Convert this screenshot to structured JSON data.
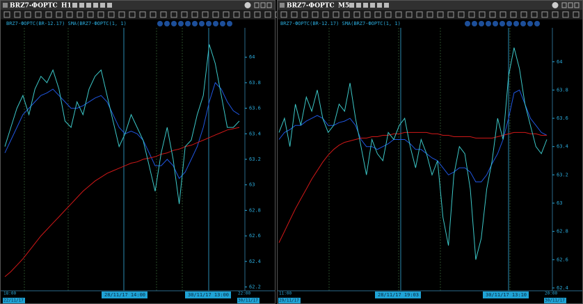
{
  "windows": [
    {
      "symbol": "BRZ7-ФОРТС",
      "timeframe": "H1",
      "chart_data": {
        "type": "line",
        "legend": "BRZ7-ФОРТС(BR-12.17) SMA(BRZ7-ФОРТС(1, 1)",
        "ylim": [
          62.17,
          64.23
        ],
        "yticks": [
          62.2,
          62.4,
          62.6,
          62.8,
          63,
          63.2,
          63.4,
          63.6,
          63.8,
          64
        ],
        "time_labels": [
          "18:00",
          "22/11/17",
          "28/11/17 14:00",
          "30/11/17 13:00",
          "22:00",
          "30/11/17"
        ],
        "series": [
          {
            "color": "#1f56e0",
            "values": [
              63.25,
              63.35,
              63.45,
              63.55,
              63.6,
              63.65,
              63.7,
              63.72,
              63.75,
              63.7,
              63.65,
              63.6,
              63.6,
              63.62,
              63.65,
              63.68,
              63.7,
              63.65,
              63.55,
              63.45,
              63.4,
              63.42,
              63.4,
              63.35,
              63.25,
              63.15,
              63.15,
              63.2,
              63.15,
              63.05,
              63.1,
              63.2,
              63.3,
              63.45,
              63.65,
              63.8,
              63.75,
              63.65,
              63.58,
              63.55
            ]
          },
          {
            "color": "#d01818",
            "values": [
              62.28,
              62.32,
              62.37,
              62.42,
              62.48,
              62.54,
              62.6,
              62.65,
              62.7,
              62.75,
              62.8,
              62.85,
              62.9,
              62.95,
              62.99,
              63.03,
              63.06,
              63.09,
              63.11,
              63.13,
              63.15,
              63.17,
              63.18,
              63.2,
              63.21,
              63.22,
              63.24,
              63.25,
              63.27,
              63.28,
              63.3,
              63.31,
              63.33,
              63.35,
              63.37,
              63.39,
              63.41,
              63.43,
              63.44,
              63.45
            ]
          },
          {
            "color": "#3cc8c8",
            "values": [
              63.3,
              63.45,
              63.6,
              63.7,
              63.55,
              63.75,
              63.85,
              63.8,
              63.9,
              63.75,
              63.5,
              63.45,
              63.65,
              63.55,
              63.75,
              63.85,
              63.9,
              63.7,
              63.5,
              63.3,
              63.4,
              63.55,
              63.45,
              63.35,
              63.15,
              62.95,
              63.25,
              63.45,
              63.2,
              62.85,
              63.3,
              63.35,
              63.55,
              63.7,
              64.1,
              63.95,
              63.7,
              63.45,
              63.45,
              63.5
            ]
          }
        ]
      }
    },
    {
      "symbol": "BRZ7-ФОРТС",
      "timeframe": "M5",
      "chart_data": {
        "type": "line",
        "legend": "BRZ7-ФОРТС(BR-12.17) SMA(BRZ7-ФОРТС(1, 1)",
        "ylim": [
          62.38,
          64.24
        ],
        "yticks": [
          62.4,
          62.6,
          62.8,
          63,
          63.2,
          63.4,
          63.6,
          63.8,
          64
        ],
        "time_labels": [
          "11:00",
          "29/11/17",
          "28/11/17 19:03",
          "30/11/17 13:10",
          "20:00",
          "30/11/17"
        ],
        "series": [
          {
            "color": "#1f56e0",
            "values": [
              63.45,
              63.5,
              63.52,
              63.55,
              63.55,
              63.58,
              63.6,
              63.62,
              63.6,
              63.55,
              63.55,
              63.57,
              63.58,
              63.6,
              63.55,
              63.45,
              63.4,
              63.4,
              63.38,
              63.4,
              63.42,
              63.45,
              63.45,
              63.45,
              63.42,
              63.38,
              63.38,
              63.35,
              63.32,
              63.3,
              63.25,
              63.2,
              63.22,
              63.25,
              63.25,
              63.22,
              63.15,
              63.15,
              63.2,
              63.28,
              63.35,
              63.45,
              63.6,
              63.78,
              63.8,
              63.7,
              63.6,
              63.55,
              63.5,
              63.48
            ]
          },
          {
            "color": "#d01818",
            "values": [
              62.72,
              62.8,
              62.88,
              62.96,
              63.03,
              63.1,
              63.17,
              63.23,
              63.29,
              63.34,
              63.38,
              63.41,
              63.43,
              63.44,
              63.45,
              63.46,
              63.46,
              63.47,
              63.47,
              63.48,
              63.48,
              63.49,
              63.49,
              63.5,
              63.5,
              63.5,
              63.5,
              63.5,
              63.49,
              63.49,
              63.48,
              63.48,
              63.47,
              63.47,
              63.47,
              63.47,
              63.46,
              63.46,
              63.46,
              63.46,
              63.47,
              63.48,
              63.49,
              63.5,
              63.5,
              63.5,
              63.49,
              63.49,
              63.48,
              63.48
            ]
          },
          {
            "color": "#3cc8c8",
            "values": [
              63.5,
              63.6,
              63.4,
              63.7,
              63.55,
              63.75,
              63.65,
              63.8,
              63.6,
              63.5,
              63.55,
              63.7,
              63.65,
              63.85,
              63.6,
              63.4,
              63.2,
              63.45,
              63.35,
              63.3,
              63.5,
              63.45,
              63.55,
              63.6,
              63.4,
              63.25,
              63.45,
              63.35,
              63.2,
              63.3,
              62.9,
              62.7,
              63.2,
              63.4,
              63.35,
              63.1,
              62.6,
              62.75,
              63.1,
              63.3,
              63.6,
              63.45,
              63.9,
              64.1,
              63.95,
              63.7,
              63.55,
              63.4,
              63.35,
              63.45
            ]
          }
        ]
      }
    }
  ]
}
